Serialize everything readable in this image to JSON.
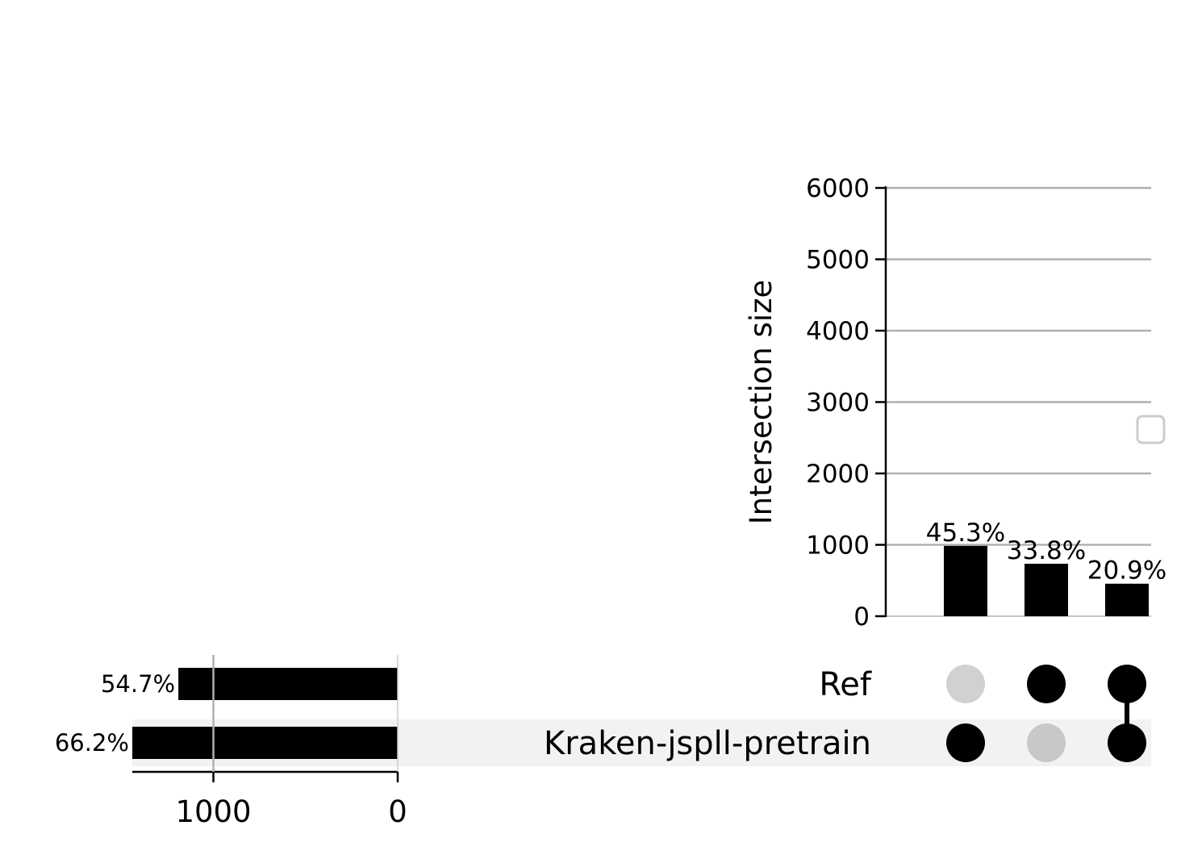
{
  "chart_data": [
    {
      "type": "bar",
      "role": "intersection-size",
      "ylabel": "Intersection size",
      "ylim": [
        0,
        6000
      ],
      "yticks": [
        0,
        1000,
        2000,
        3000,
        4000,
        5000,
        6000
      ],
      "grid": true,
      "legend": "empty box at right",
      "series": [
        {
          "values": [
            985,
            735,
            455
          ],
          "labels": [
            "45.3%",
            "33.8%",
            "20.9%"
          ]
        }
      ]
    },
    {
      "type": "bar",
      "orientation": "horizontal",
      "role": "set-size",
      "categories": [
        "Ref",
        "Kraken-jspll-pretrain"
      ],
      "values": [
        1190,
        1440
      ],
      "labels": [
        "54.7%",
        "66.2%"
      ],
      "xlim": [
        0,
        1440
      ],
      "xticks": [
        1000,
        0
      ],
      "inverted": true
    },
    {
      "type": "matrix",
      "role": "intersection-membership",
      "rows": [
        "Ref",
        "Kraken-jspll-pretrain"
      ],
      "columns": [
        [
          false,
          true
        ],
        [
          true,
          false
        ],
        [
          true,
          true
        ]
      ]
    }
  ],
  "colors": {
    "bar": "#000000",
    "dot_active": "#000000",
    "dot_inactive": "#cccccc",
    "grid": "#b0b0b0",
    "row_shade": "#f2f2f2"
  }
}
